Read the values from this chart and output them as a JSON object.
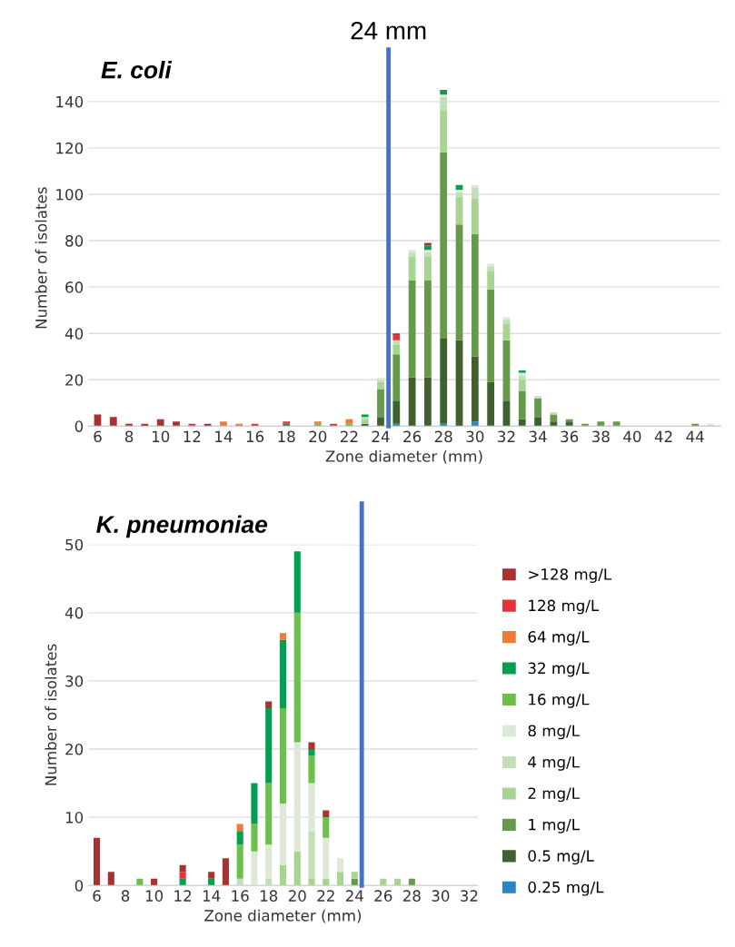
{
  "chart_data": [
    {
      "type": "bar",
      "stacked": true,
      "title": "E. coli",
      "xlabel": "Zone diameter (mm)",
      "ylabel": "Number of isolates",
      "x": [
        6,
        7,
        8,
        9,
        10,
        11,
        12,
        13,
        14,
        15,
        16,
        17,
        18,
        19,
        20,
        21,
        22,
        23,
        24,
        25,
        26,
        27,
        28,
        29,
        30,
        31,
        32,
        33,
        34,
        35,
        36,
        37,
        38,
        39,
        40,
        41,
        42,
        43,
        44,
        45
      ],
      "xlim": [
        5.4,
        45.6
      ],
      "xticks": [
        6,
        8,
        10,
        12,
        14,
        16,
        18,
        20,
        22,
        24,
        26,
        28,
        30,
        32,
        34,
        36,
        38,
        40,
        42,
        44
      ],
      "ylim": [
        0,
        145
      ],
      "yticks": [
        0,
        20,
        40,
        60,
        80,
        100,
        120,
        140
      ],
      "grid": "y",
      "legend": false,
      "ref_lines": [
        {
          "axis": "x",
          "value": 24.5,
          "label": "24 mm",
          "color": "#4472c4"
        }
      ],
      "series": [
        {
          "color": "#2a84c8",
          "values": [
            0,
            0,
            0,
            0,
            0,
            0,
            0,
            0,
            0,
            0,
            0,
            0,
            0,
            0,
            0,
            0,
            0,
            0,
            0,
            1,
            0,
            0,
            1,
            0,
            2,
            0,
            0,
            0,
            0,
            0,
            0,
            0,
            0,
            0,
            0,
            0,
            0,
            0,
            0,
            0
          ]
        },
        {
          "color": "#3f6130",
          "values": [
            0,
            0,
            0,
            0,
            0,
            0,
            0,
            0,
            0,
            0,
            0,
            0,
            0,
            0,
            0,
            0,
            0,
            1,
            4,
            10,
            21,
            21,
            37,
            37,
            28,
            19,
            11,
            3,
            4,
            2,
            2,
            0,
            0,
            0,
            0,
            0,
            0,
            0,
            0,
            0
          ]
        },
        {
          "color": "#66994a",
          "values": [
            0,
            0,
            0,
            0,
            0,
            0,
            0,
            0,
            0,
            0,
            0,
            0,
            0,
            0,
            0,
            0,
            0,
            0,
            12,
            20,
            42,
            42,
            80,
            50,
            53,
            40,
            26,
            12,
            8,
            3,
            1,
            1,
            2,
            2,
            0,
            0,
            0,
            0,
            1,
            0
          ]
        },
        {
          "color": "#a8d492",
          "values": [
            0,
            0,
            0,
            0,
            0,
            0,
            0,
            0,
            0,
            0,
            0,
            0,
            0,
            0,
            0,
            0,
            0,
            2,
            3,
            4,
            10,
            10,
            18,
            12,
            15,
            8,
            7,
            5,
            0,
            0,
            0,
            0,
            0,
            0,
            0,
            0,
            0,
            0,
            0,
            0
          ]
        },
        {
          "color": "#c3dfb8",
          "values": [
            0,
            0,
            0,
            0,
            0,
            0,
            0,
            0,
            0,
            0,
            0,
            0,
            0,
            0,
            0,
            0,
            0,
            1,
            1,
            2,
            2,
            2,
            6,
            2,
            5,
            2,
            2,
            2,
            1,
            1,
            0,
            0,
            0,
            0,
            0,
            0,
            0,
            0,
            0,
            0
          ]
        },
        {
          "color": "#dde9d6",
          "values": [
            0,
            0,
            0,
            0,
            0,
            0,
            0,
            0,
            0,
            0,
            0,
            0,
            0,
            0,
            0,
            0,
            0,
            0,
            1,
            0,
            1,
            1,
            1,
            1,
            1,
            1,
            1,
            1,
            0,
            0,
            0,
            0,
            0,
            0,
            0,
            0,
            0,
            0,
            0,
            1
          ]
        },
        {
          "color": "#6cbf4a",
          "values": [
            0,
            0,
            0,
            0,
            0,
            0,
            0,
            0,
            0,
            0,
            0,
            0,
            0,
            0,
            1,
            0,
            1,
            0,
            0,
            0,
            0,
            0,
            0,
            0,
            0,
            0,
            0,
            0,
            0,
            0,
            0,
            0,
            0,
            0,
            0,
            0,
            0,
            0,
            0,
            0
          ]
        },
        {
          "color": "#00a050",
          "values": [
            0,
            0,
            0,
            0,
            0,
            0,
            0,
            0,
            0,
            0,
            0,
            0,
            1,
            0,
            0,
            0,
            0,
            1,
            0,
            0,
            0,
            2,
            2,
            2,
            0,
            0,
            0,
            1,
            0,
            0,
            0,
            0,
            0,
            0,
            0,
            0,
            0,
            0,
            0,
            0
          ]
        },
        {
          "color": "#f07a3a",
          "values": [
            0,
            0,
            0,
            0,
            0,
            0,
            0,
            0,
            2,
            1,
            0,
            0,
            0,
            0,
            1,
            0,
            2,
            0,
            0,
            0,
            0,
            0,
            0,
            0,
            0,
            0,
            0,
            0,
            0,
            0,
            0,
            0,
            0,
            0,
            0,
            0,
            0,
            0,
            0,
            0
          ]
        },
        {
          "color": "#e8303a",
          "values": [
            0,
            0,
            0,
            0,
            0,
            0,
            1,
            0,
            0,
            0,
            1,
            0,
            1,
            0,
            0,
            1,
            0,
            0,
            0,
            2,
            0,
            0,
            0,
            0,
            0,
            0,
            0,
            0,
            0,
            0,
            0,
            0,
            0,
            0,
            0,
            0,
            0,
            0,
            0,
            0
          ]
        },
        {
          "color": "#a83232",
          "values": [
            5,
            4,
            1,
            1,
            3,
            2,
            0,
            1,
            0,
            0,
            0,
            0,
            0,
            0,
            0,
            0,
            0,
            0,
            0,
            1,
            0,
            1,
            0,
            0,
            0,
            0,
            0,
            0,
            0,
            0,
            0,
            0,
            0,
            0,
            0,
            0,
            0,
            0,
            0,
            0
          ]
        }
      ]
    },
    {
      "type": "bar",
      "stacked": true,
      "title": "K. pneumoniae",
      "xlabel": "Zone diameter (mm)",
      "ylabel": "Number of isolates",
      "x": [
        6,
        7,
        8,
        9,
        10,
        11,
        12,
        13,
        14,
        15,
        16,
        17,
        18,
        19,
        20,
        21,
        22,
        23,
        24,
        25,
        26,
        27,
        28,
        29,
        30
      ],
      "xlim": [
        5.4,
        32.6
      ],
      "xticks": [
        6,
        8,
        10,
        12,
        14,
        16,
        18,
        20,
        22,
        24,
        26,
        28,
        30,
        32
      ],
      "ylim": [
        0,
        50
      ],
      "yticks": [
        0,
        10,
        20,
        30,
        40,
        50
      ],
      "grid": "y",
      "legend": "right",
      "ref_lines": [
        {
          "axis": "x",
          "value": 24.5,
          "color": "#4472c4"
        }
      ],
      "series": [
        {
          "name": "0.25 mg/L",
          "color": "#2a84c8",
          "values": [
            0,
            0,
            0,
            0,
            0,
            0,
            0,
            0,
            0,
            0,
            0,
            0,
            0,
            0,
            0,
            0,
            0,
            0,
            0,
            0,
            0,
            0,
            0,
            0,
            0
          ]
        },
        {
          "name": "0.5 mg/L",
          "color": "#3f6130",
          "values": [
            0,
            0,
            0,
            0,
            0,
            0,
            0,
            0,
            0,
            0,
            0,
            0,
            0,
            0,
            0,
            0,
            0,
            0,
            0,
            0,
            0,
            0,
            0,
            0,
            0
          ]
        },
        {
          "name": "1 mg/L",
          "color": "#66994a",
          "values": [
            0,
            0,
            0,
            0,
            0,
            0,
            0,
            0,
            0,
            0,
            0,
            0,
            0,
            0,
            0,
            0,
            0,
            0,
            1,
            0,
            0,
            0,
            1,
            0,
            0
          ]
        },
        {
          "name": "2 mg/L",
          "color": "#a8d492",
          "values": [
            0,
            0,
            0,
            0,
            0,
            0,
            0,
            0,
            0,
            0,
            0,
            0,
            0,
            3,
            5,
            1,
            1,
            2,
            1,
            0,
            1,
            1,
            0,
            0,
            0
          ]
        },
        {
          "name": "4 mg/L",
          "color": "#c3dfb8",
          "values": [
            0,
            0,
            0,
            0,
            0,
            0,
            0,
            0,
            0,
            0,
            1,
            0,
            1,
            0,
            0,
            7,
            0,
            0,
            0,
            0,
            0,
            0,
            0,
            0,
            0
          ]
        },
        {
          "name": "8 mg/L",
          "color": "#dde9d6",
          "values": [
            0,
            0,
            0,
            0,
            0,
            0,
            0,
            0,
            0,
            0,
            0,
            5,
            5,
            9,
            16,
            7,
            6,
            2,
            0,
            0,
            0,
            0,
            0,
            0,
            0
          ]
        },
        {
          "name": "16 mg/L",
          "color": "#6cbf4a",
          "values": [
            0,
            0,
            0,
            1,
            0,
            0,
            0,
            0,
            0,
            0,
            5,
            4,
            9,
            14,
            19,
            4,
            3,
            0,
            0,
            0,
            0,
            0,
            0,
            0,
            0
          ]
        },
        {
          "name": "32 mg/L",
          "color": "#00a050",
          "values": [
            0,
            0,
            0,
            0,
            0,
            0,
            1,
            0,
            1,
            0,
            2,
            6,
            11,
            10,
            9,
            1,
            0,
            0,
            0,
            0,
            0,
            0,
            0,
            0,
            0
          ]
        },
        {
          "name": "64 mg/L",
          "color": "#f07a3a",
          "values": [
            0,
            0,
            0,
            0,
            0,
            0,
            0,
            0,
            0,
            0,
            1,
            0,
            0,
            1,
            0,
            0,
            0,
            0,
            0,
            0,
            0,
            0,
            0,
            0,
            0
          ]
        },
        {
          "name": "128 mg/L",
          "color": "#e8303a",
          "values": [
            0,
            0,
            0,
            0,
            0,
            0,
            1,
            0,
            0,
            0,
            0,
            0,
            0,
            0,
            0,
            0,
            0,
            0,
            0,
            0,
            0,
            0,
            0,
            0,
            0
          ]
        },
        {
          "name": ">128 mg/L",
          "color": "#a83232",
          "values": [
            7,
            2,
            0,
            0,
            1,
            0,
            1,
            0,
            1,
            4,
            0,
            0,
            1,
            0,
            0,
            1,
            1,
            0,
            0,
            0,
            0,
            0,
            0,
            0,
            0
          ]
        }
      ]
    }
  ]
}
